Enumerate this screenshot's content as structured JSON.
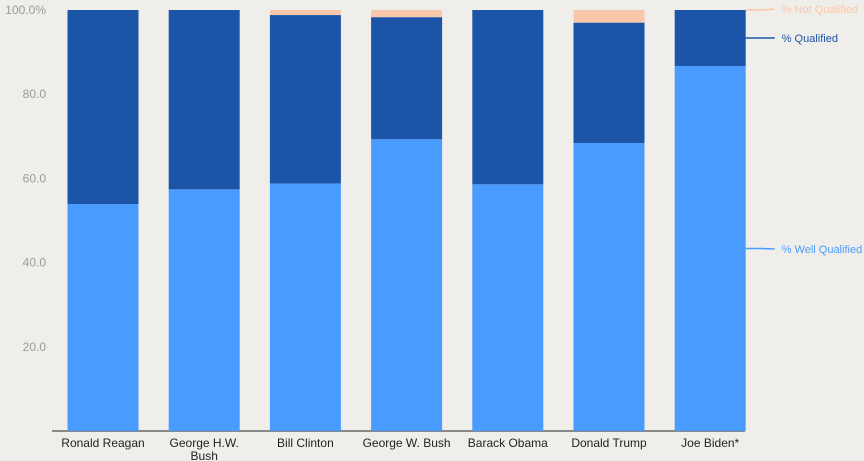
{
  "chart_data": {
    "type": "bar",
    "stacked": true,
    "categories": [
      [
        "Ronald Reagan"
      ],
      [
        "George H.W.",
        "Bush"
      ],
      [
        "Bill Clinton"
      ],
      [
        "George W. Bush"
      ],
      [
        "Barack Obama"
      ],
      [
        "Donald Trump"
      ],
      [
        "Joe Biden*"
      ]
    ],
    "series": [
      {
        "name": "% Well Qualified",
        "color": "#4a9bff",
        "values": [
          53.9,
          57.4,
          58.8,
          69.3,
          58.6,
          68.4,
          86.7
        ]
      },
      {
        "name": "% Qualified",
        "color": "#1c54a8",
        "values": [
          46.1,
          42.6,
          40.0,
          29.0,
          41.4,
          28.6,
          13.3
        ]
      },
      {
        "name": "% Not Qualified",
        "color": "#f9c7a9",
        "values": [
          0.0,
          0.0,
          1.2,
          1.7,
          0.0,
          3.0,
          0.0
        ]
      }
    ],
    "y_ticks": [
      "20.0",
      "40.0",
      "60.0",
      "80.0",
      "100.0%"
    ],
    "y_tick_values": [
      20,
      40,
      60,
      80,
      100
    ],
    "ylim": [
      0,
      100
    ],
    "grid": false,
    "legend": "right, labels at series ends"
  }
}
